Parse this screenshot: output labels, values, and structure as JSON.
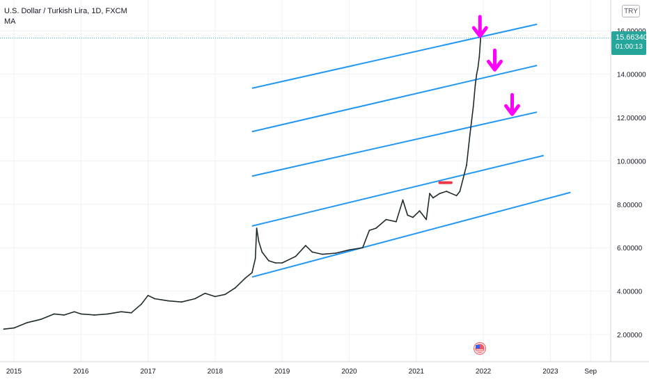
{
  "header": {
    "symbol_title": "U.S. Dollar / Turkish Lira, 1D, FXCM",
    "indicator": "MA"
  },
  "currency_badge": "TRY",
  "last_price": {
    "value": "15.66340",
    "countdown": "01:00:13",
    "color": "#26a69a"
  },
  "icons": {
    "news": "us-flag-event-icon",
    "arrow": "down-arrow-icon"
  },
  "colors": {
    "candle": "#1e2a2a",
    "channel": "#2196f3",
    "arrows": "#ff00ff",
    "marker": "#f23645",
    "grid": "#eef0f3"
  },
  "chart_data": {
    "type": "line",
    "title": "U.S. Dollar / Turkish Lira, 1D, FXCM",
    "x_tick_labels": [
      "2015",
      "2016",
      "2017",
      "2018",
      "2019",
      "2020",
      "2021",
      "2022",
      "2023",
      "Sep"
    ],
    "y_tick_labels": [
      "2.00000",
      "4.00000",
      "6.00000",
      "8.00000",
      "10.00000",
      "12.00000",
      "14.00000",
      "16.00000"
    ],
    "ylim": [
      0.6,
      17.4
    ],
    "xlim": [
      2014.85,
      2023.9
    ],
    "grid": true,
    "series": [
      {
        "x": [
          2014.85,
          2015.0,
          2015.2,
          2015.4,
          2015.6,
          2015.75,
          2015.9,
          2016.0,
          2016.2,
          2016.4,
          2016.6,
          2016.75,
          2016.9,
          2017.0,
          2017.1,
          2017.3,
          2017.5,
          2017.7,
          2017.85,
          2018.0,
          2018.15,
          2018.3,
          2018.45,
          2018.55,
          2018.6,
          2018.62,
          2018.65,
          2018.7,
          2018.8,
          2018.9,
          2019.0,
          2019.2,
          2019.35,
          2019.45,
          2019.6,
          2019.8,
          2020.0,
          2020.2,
          2020.3,
          2020.4,
          2020.55,
          2020.7,
          2020.8,
          2020.87,
          2020.95,
          2021.05,
          2021.15,
          2021.2,
          2021.25,
          2021.35,
          2021.45,
          2021.6,
          2021.65,
          2021.7,
          2021.75,
          2021.8,
          2021.85,
          2021.88,
          2021.9,
          2021.92,
          2021.94,
          2021.96
        ],
        "y": [
          2.25,
          2.3,
          2.55,
          2.7,
          2.95,
          2.9,
          3.05,
          2.95,
          2.9,
          2.95,
          3.05,
          3.0,
          3.4,
          3.8,
          3.65,
          3.55,
          3.5,
          3.65,
          3.9,
          3.75,
          3.85,
          4.15,
          4.6,
          4.85,
          5.5,
          6.9,
          6.3,
          5.8,
          5.4,
          5.3,
          5.3,
          5.6,
          6.1,
          5.8,
          5.7,
          5.75,
          5.9,
          6.0,
          6.8,
          6.9,
          7.3,
          7.2,
          8.2,
          7.5,
          7.4,
          7.7,
          7.3,
          8.5,
          8.3,
          8.5,
          8.6,
          8.4,
          8.6,
          9.2,
          9.8,
          11.2,
          12.5,
          13.5,
          14.0,
          14.3,
          14.8,
          15.66
        ]
      }
    ],
    "channel_lines": [
      {
        "x": [
          2018.55,
          2022.8
        ],
        "y": [
          13.35,
          16.3
        ]
      },
      {
        "x": [
          2018.55,
          2022.8
        ],
        "y": [
          11.35,
          14.4
        ]
      },
      {
        "x": [
          2018.55,
          2022.8
        ],
        "y": [
          9.3,
          12.25
        ]
      },
      {
        "x": [
          2018.55,
          2022.9
        ],
        "y": [
          7.0,
          10.25
        ]
      },
      {
        "x": [
          2018.55,
          2023.3
        ],
        "y": [
          4.65,
          8.55
        ]
      }
    ],
    "resistance_marker": {
      "x": [
        2021.35,
        2021.52
      ],
      "y": [
        9.0,
        9.0
      ]
    },
    "down_arrows": [
      {
        "x": 2021.95,
        "y": 16.2
      },
      {
        "x": 2022.17,
        "y": 14.65
      },
      {
        "x": 2022.43,
        "y": 12.6
      }
    ],
    "last_value_line": 15.66
  }
}
